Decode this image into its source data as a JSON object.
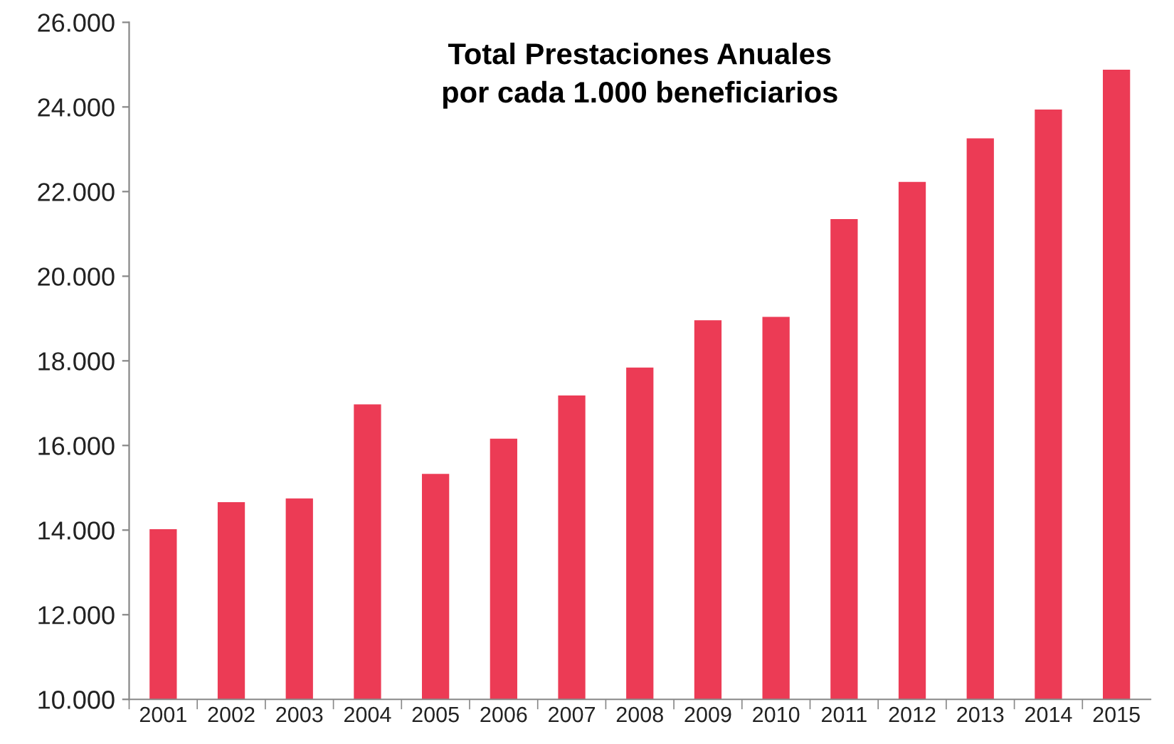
{
  "chart_data": {
    "type": "bar",
    "title": "Total Prestaciones Anuales\npor cada 1.000 beneficiarios",
    "categories": [
      "2001",
      "2002",
      "2003",
      "2004",
      "2005",
      "2006",
      "2007",
      "2008",
      "2009",
      "2010",
      "2011",
      "2012",
      "2013",
      "2014",
      "2015"
    ],
    "values": [
      14020,
      14660,
      14750,
      16970,
      15330,
      16160,
      17180,
      17840,
      18960,
      19040,
      21350,
      22230,
      23260,
      23940,
      24880
    ],
    "color": "#ec3b55",
    "ylim": [
      10000,
      26000
    ],
    "yticks": [
      {
        "value": 10000,
        "label": "10.000"
      },
      {
        "value": 12000,
        "label": "12.000"
      },
      {
        "value": 14000,
        "label": "14.000"
      },
      {
        "value": 16000,
        "label": "16.000"
      },
      {
        "value": 18000,
        "label": "18.000"
      },
      {
        "value": 20000,
        "label": "20.000"
      },
      {
        "value": 22000,
        "label": "22.000"
      },
      {
        "value": 24000,
        "label": "24.000"
      },
      {
        "value": 26000,
        "label": "26.000"
      }
    ],
    "grid": false
  }
}
